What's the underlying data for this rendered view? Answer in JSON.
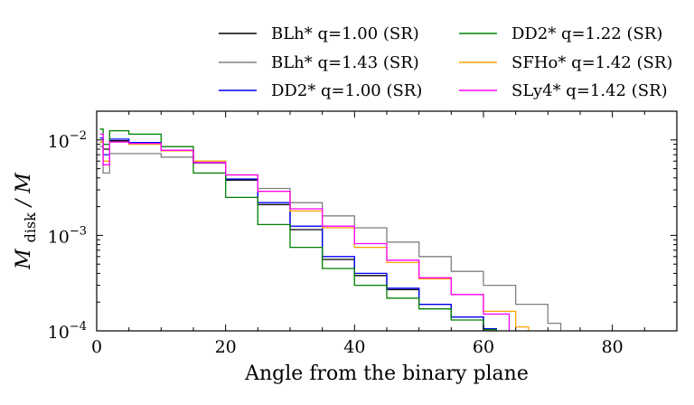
{
  "chart_data": {
    "type": "line",
    "title": "",
    "xlabel": "Angle from the binary plane",
    "ylabel_main": "M",
    "ylabel_sub": "disk",
    "ylabel_tail": "/ M",
    "xlim": [
      0,
      90
    ],
    "ylim": [
      0.0001,
      0.02
    ],
    "yscale": "log",
    "grid": false,
    "legend_position": "top, above plot, two columns",
    "x_ticks": [
      0,
      20,
      40,
      60,
      80
    ],
    "x_tick_labels": [
      "0",
      "20",
      "40",
      "60",
      "80"
    ],
    "y_ticks": [
      0.01,
      0.001,
      0.0001
    ],
    "y_tick_base": [
      "10",
      "10",
      "10"
    ],
    "y_tick_exp": [
      "−2",
      "−3",
      "−4"
    ],
    "series": [
      {
        "name": "BLh* q=1.00 (SR)",
        "color": "#000000",
        "x": [
          0.5,
          1,
          2,
          5,
          10,
          15,
          20,
          25,
          30,
          35,
          40,
          45,
          50,
          55,
          60,
          62
        ],
        "y": [
          0.0095,
          0.008,
          0.0098,
          0.0093,
          0.0078,
          0.0058,
          0.0038,
          0.0021,
          0.00115,
          0.00056,
          0.00038,
          0.00027,
          0.00019,
          0.00014,
          0.000105,
          0.0001
        ]
      },
      {
        "name": "BLh* q=1.43 (SR)",
        "color": "#808080",
        "x": [
          0.5,
          1,
          2,
          5,
          10,
          15,
          20,
          25,
          30,
          35,
          40,
          45,
          50,
          55,
          60,
          65,
          70,
          72
        ],
        "y": [
          0.0085,
          0.0045,
          0.0072,
          0.0072,
          0.0066,
          0.0057,
          0.0043,
          0.0031,
          0.0022,
          0.0016,
          0.0012,
          0.00085,
          0.0006,
          0.00042,
          0.0003,
          0.00019,
          0.00012,
          0.0001
        ]
      },
      {
        "name": "DD2* q=1.00 (SR)",
        "color": "#0000ff",
        "x": [
          0.5,
          1,
          2,
          5,
          10,
          15,
          20,
          25,
          30,
          35,
          40,
          45,
          50,
          55,
          60,
          62
        ],
        "y": [
          0.0105,
          0.007,
          0.0102,
          0.0094,
          0.0078,
          0.0058,
          0.0039,
          0.0022,
          0.00125,
          0.0006,
          0.0004,
          0.00028,
          0.00019,
          0.00014,
          0.000105,
          0.0001
        ]
      },
      {
        "name": "DD2* q=1.22 (SR)",
        "color": "#008000",
        "x": [
          0.5,
          1,
          2,
          5,
          10,
          15,
          20,
          25,
          30,
          35,
          40,
          45,
          50,
          55,
          60,
          62
        ],
        "y": [
          0.013,
          0.009,
          0.0125,
          0.0115,
          0.0085,
          0.0045,
          0.0025,
          0.0013,
          0.00075,
          0.00045,
          0.0003,
          0.00022,
          0.00017,
          0.00013,
          0.000103,
          0.0001
        ]
      },
      {
        "name": "SFHo* q=1.42 (SR)",
        "color": "#ffa500",
        "x": [
          0.5,
          1,
          2,
          5,
          10,
          15,
          20,
          25,
          30,
          35,
          40,
          45,
          50,
          55,
          60,
          65,
          67
        ],
        "y": [
          0.0095,
          0.006,
          0.0095,
          0.009,
          0.0077,
          0.006,
          0.0043,
          0.0029,
          0.0018,
          0.0012,
          0.00075,
          0.00052,
          0.00035,
          0.00024,
          0.00016,
          0.00011,
          0.0001
        ]
      },
      {
        "name": "SLy4* q=1.42 (SR)",
        "color": "#ff00ff",
        "x": [
          0.5,
          1,
          2,
          5,
          10,
          15,
          20,
          25,
          30,
          35,
          40,
          45,
          50,
          55,
          60,
          64
        ],
        "y": [
          0.0115,
          0.0055,
          0.0095,
          0.0092,
          0.0078,
          0.0058,
          0.0043,
          0.0029,
          0.0019,
          0.00125,
          0.00082,
          0.00055,
          0.00036,
          0.00024,
          0.00015,
          0.0001
        ]
      }
    ]
  }
}
